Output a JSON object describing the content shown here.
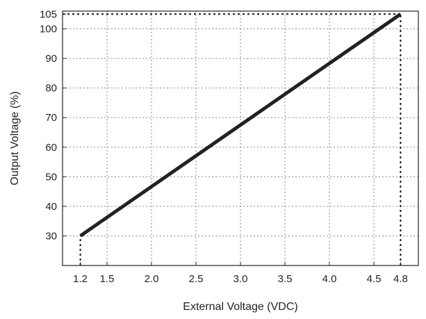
{
  "chart_data": {
    "type": "line",
    "title": "",
    "xlabel": "External Voltage (VDC)",
    "ylabel": "Output Voltage (%)",
    "xlim": [
      1.0,
      5.0
    ],
    "ylim": [
      20,
      106
    ],
    "grid": true,
    "x_ticks": [
      {
        "value": 1.2,
        "label": "1.2"
      },
      {
        "value": 1.5,
        "label": "1.5"
      },
      {
        "value": 2.0,
        "label": "2.0"
      },
      {
        "value": 2.5,
        "label": "2.5"
      },
      {
        "value": 3.0,
        "label": "3.0"
      },
      {
        "value": 3.5,
        "label": "3.5"
      },
      {
        "value": 4.0,
        "label": "4.0"
      },
      {
        "value": 4.5,
        "label": "4.5"
      },
      {
        "value": 4.8,
        "label": "4.8"
      }
    ],
    "y_ticks": [
      {
        "value": 30,
        "label": "30"
      },
      {
        "value": 40,
        "label": "40"
      },
      {
        "value": 50,
        "label": "50"
      },
      {
        "value": 60,
        "label": "60"
      },
      {
        "value": 70,
        "label": "70"
      },
      {
        "value": 80,
        "label": "80"
      },
      {
        "value": 90,
        "label": "90"
      },
      {
        "value": 100,
        "label": "100"
      },
      {
        "value": 105,
        "label": "105"
      }
    ],
    "series": [
      {
        "x": [
          1.2,
          4.8
        ],
        "y": [
          30,
          105
        ],
        "color": "#222222"
      }
    ],
    "reference_lines": [
      {
        "orientation": "horizontal",
        "value": 105,
        "x_from": 1.0,
        "x_to": 4.8
      },
      {
        "orientation": "vertical",
        "value": 4.8,
        "y_from": 20,
        "y_to": 105
      },
      {
        "orientation": "vertical",
        "value": 1.2,
        "y_from": 20,
        "y_to": 30
      }
    ]
  }
}
